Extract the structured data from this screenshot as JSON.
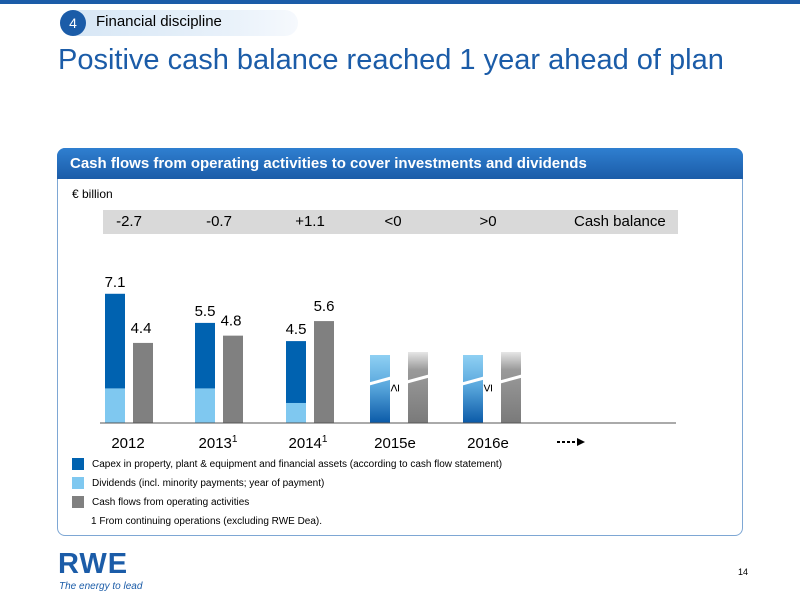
{
  "header": {
    "section_number": "4",
    "section_label": "Financial discipline",
    "title": "Positive cash balance reached 1 year ahead of plan"
  },
  "panel": {
    "header": "Cash flows from operating activities to cover investments and dividends",
    "unit": "€ billion"
  },
  "cash_balance": {
    "label": "Cash balance",
    "values": [
      "-2.7",
      "-0.7",
      "+1.1",
      "<0",
      ">0"
    ]
  },
  "chart_data": {
    "type": "bar",
    "categories": [
      "2012",
      "20131",
      "20141",
      "2015e",
      "2016e"
    ],
    "category_labels": [
      {
        "text": "2012",
        "sup": ""
      },
      {
        "text": "2013",
        "sup": "1"
      },
      {
        "text": "2014",
        "sup": "1"
      },
      {
        "text": "2015e",
        "sup": ""
      },
      {
        "text": "2016e",
        "sup": ""
      }
    ],
    "series": [
      {
        "name": "Capex in property, plant & equipment and financial assets (according to cash flow statement)",
        "values": [
          5.2,
          3.6,
          3.4,
          null,
          null
        ],
        "color": "#0062b0"
      },
      {
        "name": "Dividends (incl. minority payments; year of payment)",
        "values": [
          1.9,
          1.9,
          1.1,
          null,
          null
        ],
        "color": "#7fc8f0"
      },
      {
        "name": "Cash flows from operating activities",
        "values": [
          4.4,
          4.8,
          5.6,
          null,
          null
        ],
        "color": "#808080"
      }
    ],
    "stack_totals": [
      "7.1",
      "5.5",
      "4.5"
    ],
    "operating_labels": [
      "4.4",
      "4.8",
      "5.6"
    ],
    "estimate_comparisons": [
      "≥",
      "≤"
    ],
    "ylim": [
      0,
      8
    ]
  },
  "footnote": "1 From continuing operations (excluding RWE Dea).",
  "logo": {
    "text": "RWE",
    "tagline": "The energy to lead"
  },
  "page_number": "14",
  "colors": {
    "brand_blue": "#1b5ca8",
    "capex": "#0062b0",
    "dividends": "#7fc8f0",
    "operating": "#808080"
  }
}
